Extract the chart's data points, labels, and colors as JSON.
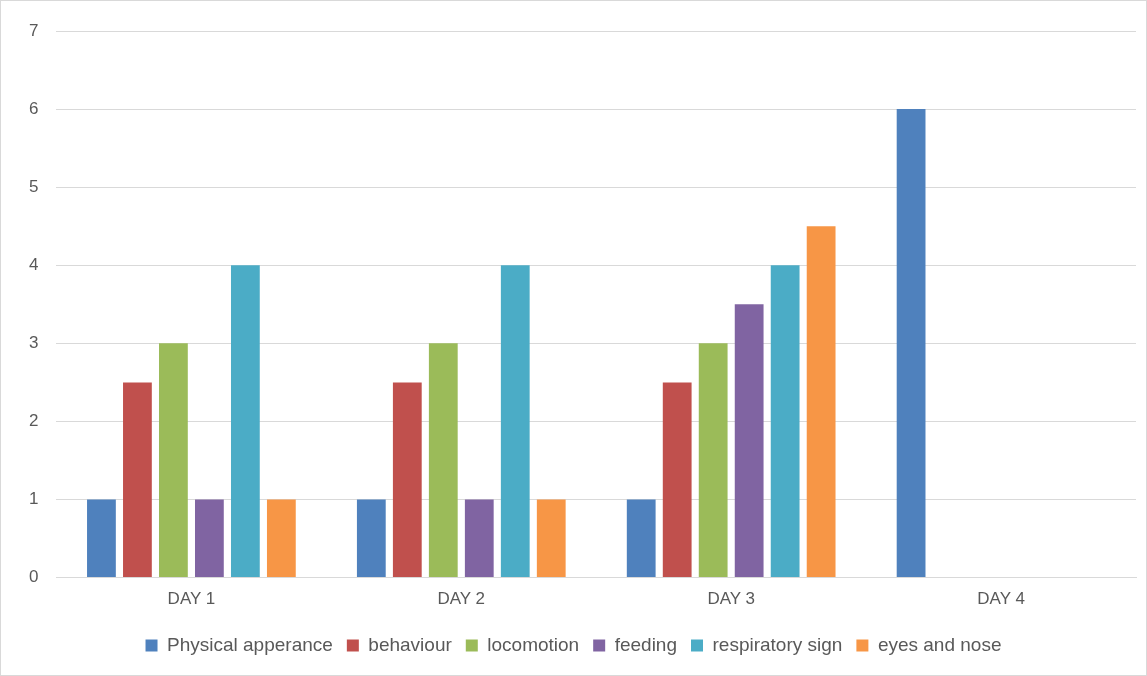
{
  "chart_data": {
    "type": "bar",
    "categories": [
      "DAY 1",
      "DAY 2",
      "DAY 3",
      "DAY 4"
    ],
    "series": [
      {
        "name": "Physical apperance",
        "color": "#4f81bd",
        "values": [
          1,
          1,
          1,
          6
        ]
      },
      {
        "name": "behaviour",
        "color": "#c0504d",
        "values": [
          2.5,
          2.5,
          2.5,
          0
        ]
      },
      {
        "name": "locomotion",
        "color": "#9bbb59",
        "values": [
          3,
          3,
          3,
          0
        ]
      },
      {
        "name": "feeding",
        "color": "#8064a2",
        "values": [
          1,
          1,
          3.5,
          0
        ]
      },
      {
        "name": "respiratory sign",
        "color": "#4bacc6",
        "values": [
          4,
          4,
          4,
          0
        ]
      },
      {
        "name": "eyes and nose",
        "color": "#f79646",
        "values": [
          1,
          1,
          4.5,
          0
        ]
      }
    ],
    "ylim": [
      0,
      7
    ],
    "yticks": [
      0,
      1,
      2,
      3,
      4,
      5,
      6,
      7
    ],
    "grid": "y",
    "legend": "bottom"
  }
}
